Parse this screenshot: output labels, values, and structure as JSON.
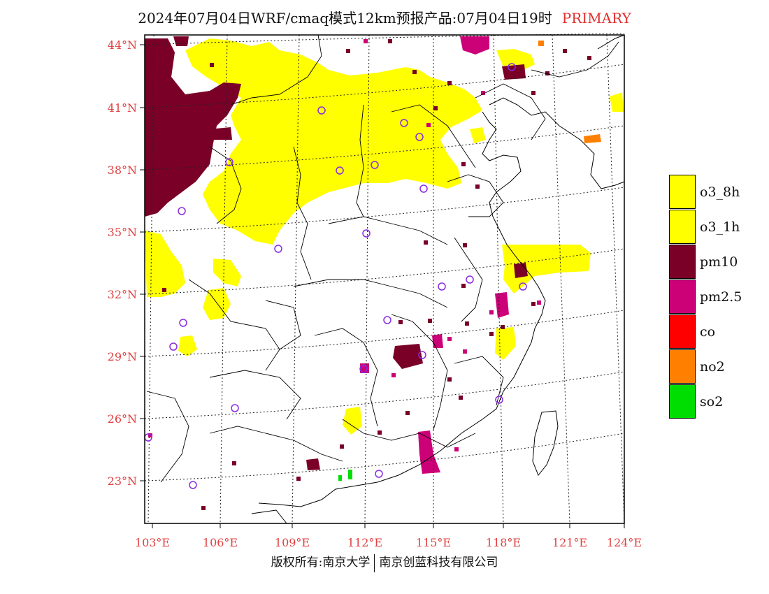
{
  "title": {
    "main": "2024年07月04日WRF/cmaq模式12km预报产品:07月04日19时",
    "tag": "PRIMARY",
    "tag_color": "#e03030"
  },
  "map": {
    "lat_labels": [
      "44°N",
      "41°N",
      "38°N",
      "35°N",
      "32°N",
      "29°N",
      "26°N",
      "23°N"
    ],
    "lon_labels": [
      "103°E",
      "106°E",
      "109°E",
      "112°E",
      "115°E",
      "118°E",
      "121°E",
      "124°E"
    ],
    "axis_label_color": "#e04040",
    "station_marker_color": "#8a2be2",
    "layers": {
      "o3": "#ffff00",
      "pm10": "#7a0028",
      "pm25": "#cc0077",
      "co": "#ff0000",
      "no2": "#ff8000",
      "so2": "#00dd00"
    }
  },
  "legend": [
    {
      "label": "o3_8h",
      "color": "#ffff00"
    },
    {
      "label": "o3_1h",
      "color": "#ffff00"
    },
    {
      "label": "pm10",
      "color": "#7a0028"
    },
    {
      "label": "pm2.5",
      "color": "#cc0077"
    },
    {
      "label": "co",
      "color": "#ff0000"
    },
    {
      "label": "no2",
      "color": "#ff8000"
    },
    {
      "label": "so2",
      "color": "#00dd00"
    }
  ],
  "footer": {
    "left": "版权所有:南京大学",
    "right": "南京创蓝科技有限公司"
  }
}
